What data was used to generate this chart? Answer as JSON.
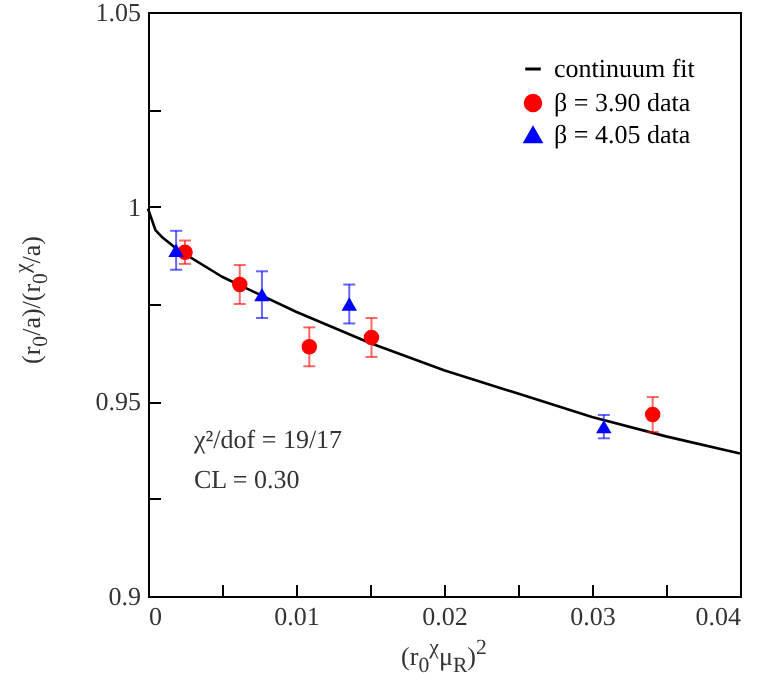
{
  "chart_data": {
    "type": "scatter",
    "xlabel": "(r$_{0}$$^{χ}$μ$_{R}$)$^{2}$",
    "ylabel": "(r$_{0}$/a)/(r$_{0}$$^{χ}$/a)",
    "annotations": [
      "χ²/dof = 19/17",
      "CL = 0.30"
    ],
    "xlim": [
      0,
      0.04
    ],
    "ylim": [
      0.9,
      1.05
    ],
    "xticks": [
      0,
      {
        "value": 0.005,
        "label": null
      },
      0.01,
      {
        "value": 0.015,
        "label": null
      },
      0.02,
      {
        "value": 0.025,
        "label": null
      },
      0.03,
      {
        "value": 0.035,
        "label": null
      },
      0.04
    ],
    "yticks": [
      0.9,
      {
        "value": 0.925,
        "label": null
      },
      0.95,
      {
        "value": 0.975,
        "label": null
      },
      1,
      {
        "value": 1.025,
        "label": null
      },
      1.05
    ],
    "grid": false,
    "legend": "top right",
    "series": [
      {
        "name": "continuum fit",
        "type": "line",
        "color": "#000000",
        "marker": "none",
        "x": [
          0,
          0.0005,
          0.001,
          0.002,
          0.005,
          0.01,
          0.015,
          0.02,
          0.025,
          0.03,
          0.035,
          0.04
        ],
        "values": [
          0.9995,
          0.994,
          0.992,
          0.989,
          0.982,
          0.973,
          0.965,
          0.958,
          0.952,
          0.946,
          0.941,
          0.9366
        ]
      },
      {
        "name": "β = 3.90 data",
        "type": "scatter",
        "color": "#ff0000",
        "marker": "circle",
        "x": [
          0.0025,
          0.0062,
          0.0109,
          0.0151,
          0.0341
        ],
        "values": [
          0.9883,
          0.98,
          0.964,
          0.9664,
          0.9466
        ],
        "errors": [
          0.003,
          0.005,
          0.005,
          0.005,
          0.0045
        ]
      },
      {
        "name": "β = 4.05 data",
        "type": "scatter",
        "color": "#0000ff",
        "marker": "triangle",
        "x": [
          0.0019,
          0.0077,
          0.0136,
          0.0308
        ],
        "values": [
          0.9888,
          0.9774,
          0.975,
          0.9435
        ],
        "errors": [
          0.005,
          0.006,
          0.005,
          0.003
        ]
      }
    ]
  }
}
